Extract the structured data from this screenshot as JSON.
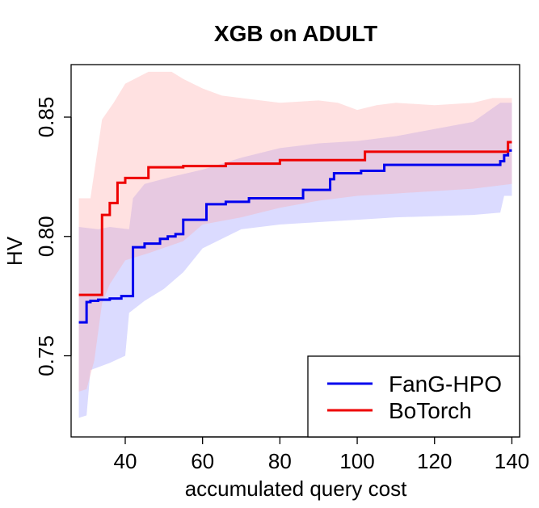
{
  "chart_data": {
    "type": "line",
    "title": "XGB on ADULT",
    "xlabel": "accumulated query cost",
    "ylabel": "HV",
    "xlim": [
      26,
      142
    ],
    "ylim": [
      0.716,
      0.872
    ],
    "x_ticks": [
      40,
      60,
      80,
      100,
      120,
      140
    ],
    "x_tick_labels": [
      "40",
      "60",
      "80",
      "100",
      "120",
      "140"
    ],
    "y_ticks": [
      0.75,
      0.8,
      0.85
    ],
    "y_tick_labels": [
      "0.75",
      "0.80",
      "0.85"
    ],
    "legend_position": "bottom-right",
    "series": [
      {
        "name": "FanG-HPO",
        "color": "#0000ee",
        "band_color": "#9999ff",
        "steps": [
          [
            28,
            0.764
          ],
          [
            30,
            0.7725
          ],
          [
            31,
            0.773
          ],
          [
            33,
            0.7735
          ],
          [
            36,
            0.774
          ],
          [
            39,
            0.775
          ],
          [
            42,
            0.7955
          ],
          [
            45,
            0.797
          ],
          [
            49,
            0.799
          ],
          [
            51,
            0.8
          ],
          [
            53,
            0.801
          ],
          [
            55,
            0.807
          ],
          [
            61,
            0.8135
          ],
          [
            66,
            0.8145
          ],
          [
            72,
            0.816
          ],
          [
            86,
            0.8195
          ],
          [
            93,
            0.824
          ],
          [
            94,
            0.8265
          ],
          [
            101,
            0.8275
          ],
          [
            107,
            0.83
          ],
          [
            137,
            0.8315
          ],
          [
            138,
            0.834
          ],
          [
            139,
            0.836
          ],
          [
            140,
            0.836
          ]
        ],
        "band_upper": [
          [
            28,
            0.804
          ],
          [
            33,
            0.803
          ],
          [
            36,
            0.804
          ],
          [
            41,
            0.803
          ],
          [
            42,
            0.816
          ],
          [
            45,
            0.822
          ],
          [
            52,
            0.825
          ],
          [
            60,
            0.828
          ],
          [
            70,
            0.833
          ],
          [
            80,
            0.837
          ],
          [
            90,
            0.839
          ],
          [
            100,
            0.84
          ],
          [
            110,
            0.842
          ],
          [
            120,
            0.845
          ],
          [
            130,
            0.848
          ],
          [
            137,
            0.856
          ],
          [
            140,
            0.856
          ]
        ],
        "band_lower": [
          [
            28,
            0.724
          ],
          [
            30,
            0.725
          ],
          [
            31,
            0.744
          ],
          [
            36,
            0.747
          ],
          [
            40,
            0.75
          ],
          [
            41,
            0.768
          ],
          [
            45,
            0.773
          ],
          [
            50,
            0.778
          ],
          [
            55,
            0.785
          ],
          [
            60,
            0.795
          ],
          [
            70,
            0.803
          ],
          [
            80,
            0.805
          ],
          [
            90,
            0.806
          ],
          [
            100,
            0.807
          ],
          [
            110,
            0.808
          ],
          [
            130,
            0.809
          ],
          [
            137,
            0.81
          ],
          [
            138,
            0.817
          ],
          [
            140,
            0.817
          ]
        ]
      },
      {
        "name": "BoTorch",
        "color": "#ee0000",
        "band_color": "#ffaaaa",
        "steps": [
          [
            28,
            0.7755
          ],
          [
            34,
            0.809
          ],
          [
            36,
            0.814
          ],
          [
            38,
            0.8225
          ],
          [
            40,
            0.8245
          ],
          [
            46,
            0.829
          ],
          [
            55,
            0.8295
          ],
          [
            66,
            0.8305
          ],
          [
            80,
            0.832
          ],
          [
            102,
            0.8355
          ],
          [
            139,
            0.8395
          ],
          [
            140,
            0.8395
          ]
        ],
        "band_upper": [
          [
            28,
            0.816
          ],
          [
            31,
            0.816
          ],
          [
            34,
            0.849
          ],
          [
            37,
            0.856
          ],
          [
            40,
            0.864
          ],
          [
            46,
            0.869
          ],
          [
            52,
            0.869
          ],
          [
            55,
            0.866
          ],
          [
            60,
            0.862
          ],
          [
            65,
            0.859
          ],
          [
            70,
            0.858
          ],
          [
            80,
            0.856
          ],
          [
            90,
            0.857
          ],
          [
            95,
            0.856
          ],
          [
            100,
            0.853
          ],
          [
            105,
            0.855
          ],
          [
            110,
            0.856
          ],
          [
            120,
            0.855
          ],
          [
            130,
            0.856
          ],
          [
            135,
            0.858
          ],
          [
            140,
            0.858
          ]
        ],
        "band_lower": [
          [
            28,
            0.735
          ],
          [
            30,
            0.736
          ],
          [
            32,
            0.748
          ],
          [
            34,
            0.772
          ],
          [
            36,
            0.78
          ],
          [
            40,
            0.79
          ],
          [
            46,
            0.793
          ],
          [
            55,
            0.798
          ],
          [
            60,
            0.805
          ],
          [
            70,
            0.808
          ],
          [
            80,
            0.812
          ],
          [
            90,
            0.815
          ],
          [
            100,
            0.817
          ],
          [
            110,
            0.818
          ],
          [
            120,
            0.819
          ],
          [
            130,
            0.82
          ],
          [
            140,
            0.822
          ]
        ]
      }
    ]
  }
}
